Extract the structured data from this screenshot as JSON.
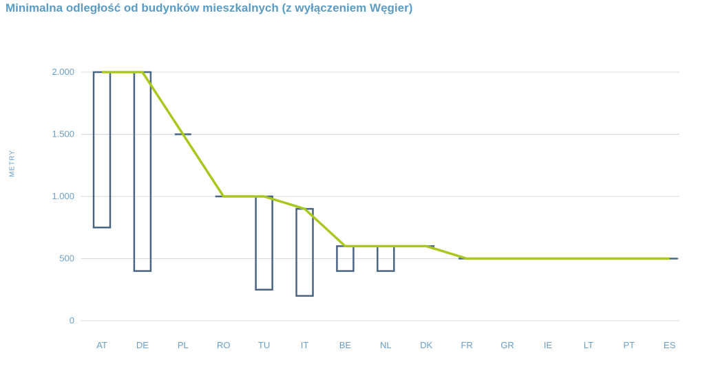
{
  "chart_data": {
    "type": "line",
    "title": "Minimalna odległość od budynków mieszkalnych (z wyłączeniem Węgier)",
    "ylabel": "METRY",
    "xlabel": "",
    "categories": [
      "AT",
      "DE",
      "PL",
      "RO",
      "TU",
      "IT",
      "BE",
      "NL",
      "DK",
      "FR",
      "GR",
      "IE",
      "LT",
      "PT",
      "ES"
    ],
    "yticks": [
      {
        "value": 0,
        "label": "0"
      },
      {
        "value": 500,
        "label": "500"
      },
      {
        "value": 1000,
        "label": "1.000"
      },
      {
        "value": 1500,
        "label": "1.500"
      },
      {
        "value": 2000,
        "label": "2.000"
      }
    ],
    "ylim": [
      0,
      2000
    ],
    "grid": true,
    "series": [
      {
        "type": "line",
        "values": [
          2000,
          2000,
          1500,
          1000,
          1000,
          900,
          600,
          600,
          600,
          500,
          500,
          500,
          500,
          500,
          500
        ]
      },
      {
        "type": "range",
        "min": [
          750,
          400,
          1500,
          1000,
          250,
          200,
          400,
          400,
          600,
          500,
          500,
          500,
          500,
          500,
          500
        ],
        "max": [
          2000,
          2000,
          1500,
          1000,
          1000,
          900,
          600,
          600,
          600,
          500,
          500,
          500,
          500,
          500,
          500
        ]
      }
    ],
    "colors": {
      "line": "#a8c81e",
      "box": "#4a6583",
      "grid": "#d4d8dc",
      "text": "#6a9ec7"
    }
  }
}
